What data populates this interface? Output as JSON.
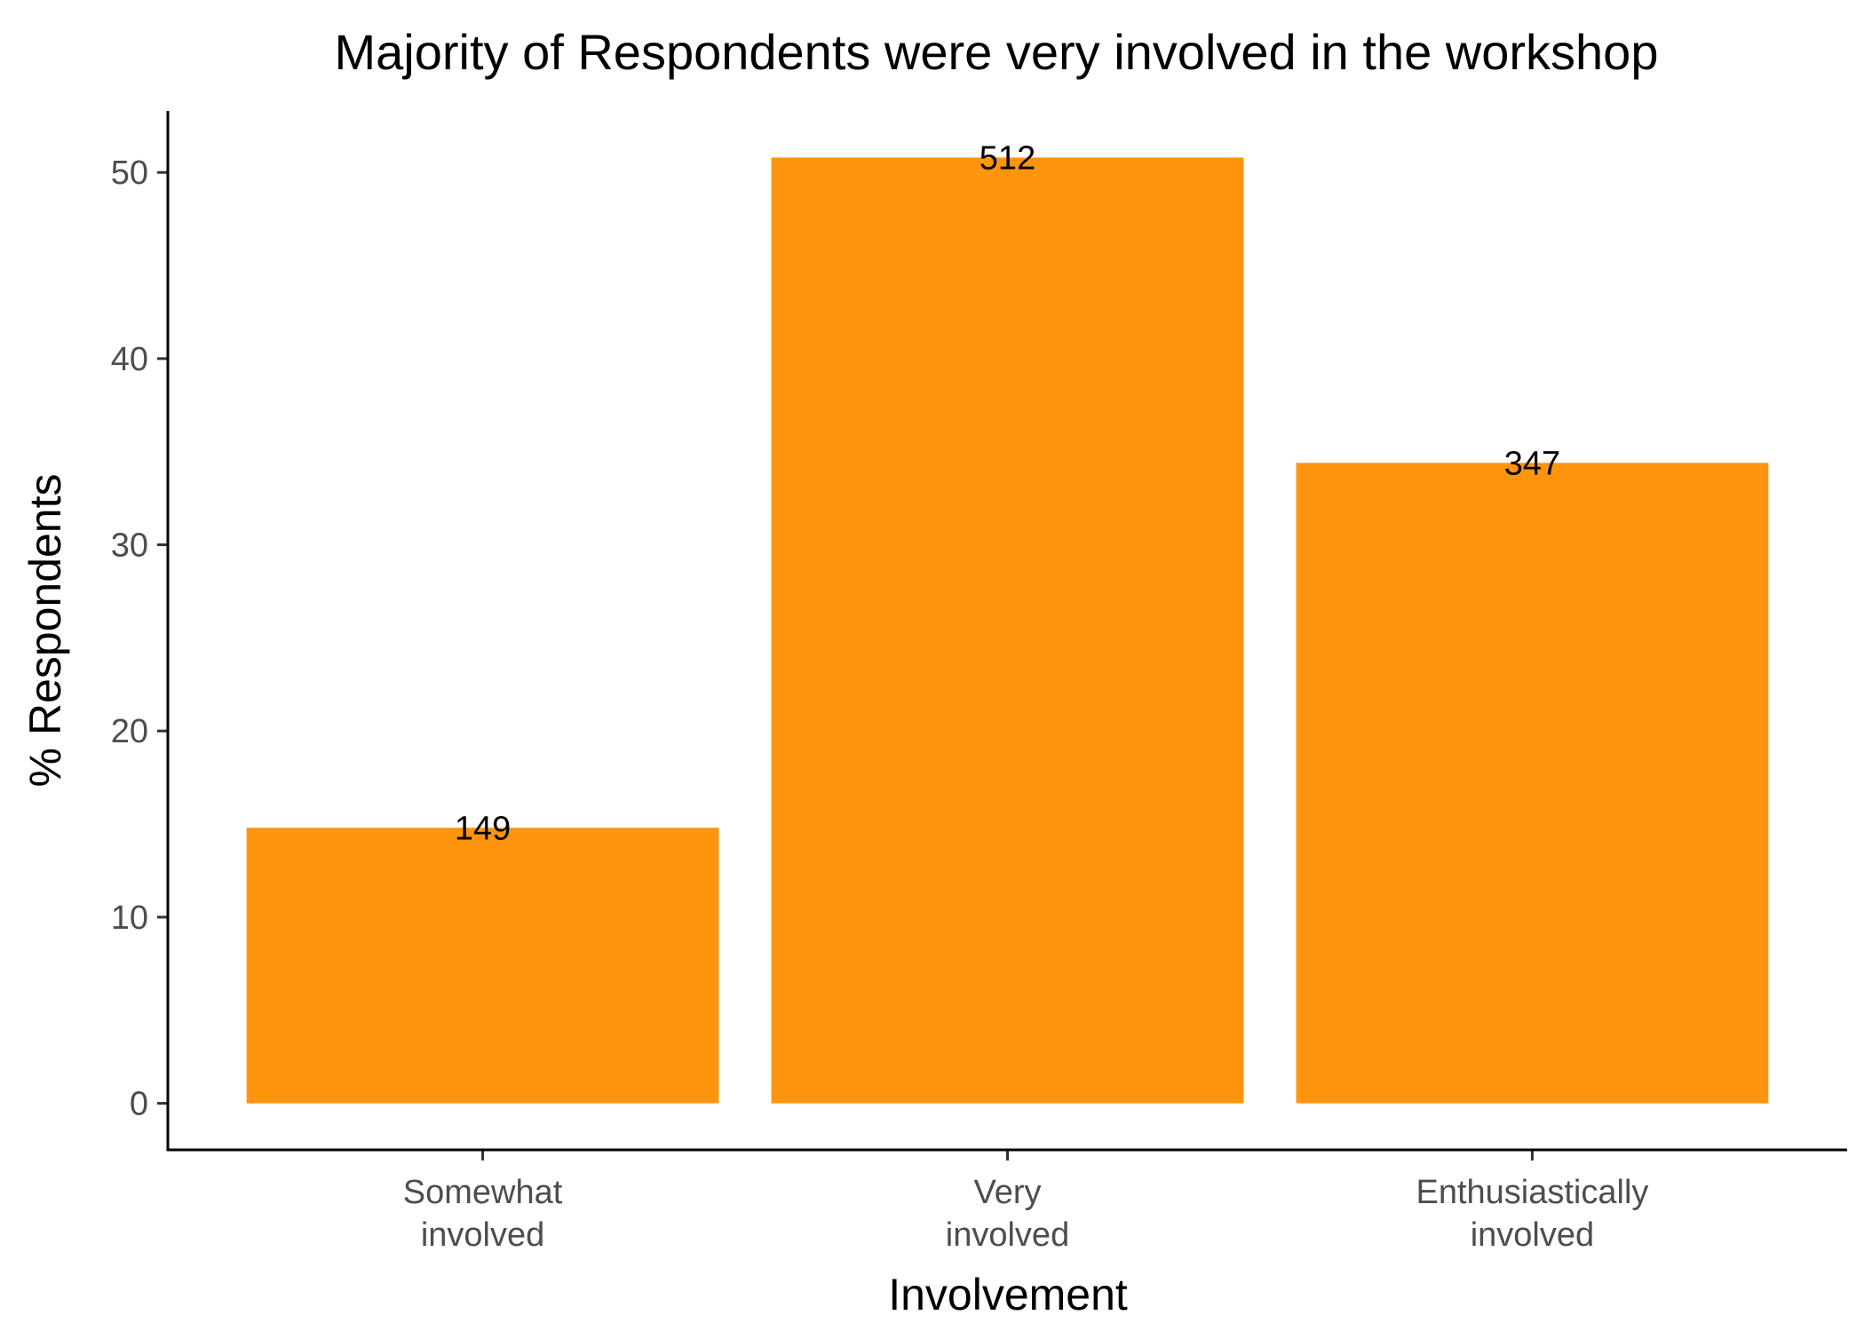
{
  "chart_data": {
    "type": "bar",
    "title": "Majority of Respondents were very involved in the workshop",
    "xlabel": "Involvement",
    "ylabel": "% Respondents",
    "categories": [
      [
        "Somewhat",
        "involved"
      ],
      [
        "Very",
        "involved"
      ],
      [
        "Enthusiastically",
        "involved"
      ]
    ],
    "values": [
      14.8,
      50.8,
      34.4
    ],
    "data_labels": [
      "149",
      "512",
      "347"
    ],
    "yticks": [
      0,
      10,
      20,
      30,
      40,
      50
    ],
    "ylim": [
      -2.5,
      53.3
    ],
    "grid": false,
    "legend": "none",
    "bar_color": "#FF950E"
  }
}
